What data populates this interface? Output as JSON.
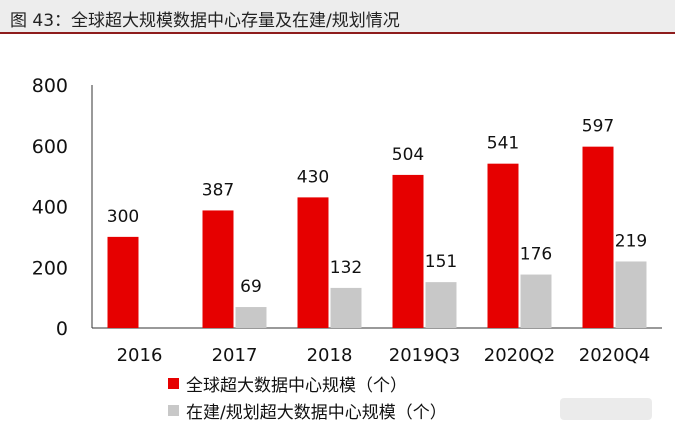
{
  "figure_title": "图 43：全球超大规模数据中心存量及在建/规划情况",
  "chart_data": {
    "type": "bar",
    "categories": [
      "2016",
      "2017",
      "2018",
      "2019Q3",
      "2020Q2",
      "2020Q4"
    ],
    "series": [
      {
        "name": "全球超大数据中心规模（个）",
        "color": "#e60000",
        "values": [
          300,
          387,
          430,
          504,
          541,
          597
        ]
      },
      {
        "name": "在建/规划超大数据中心规模（个）",
        "color": "#c8c8c8",
        "values": [
          null,
          69,
          132,
          151,
          176,
          219
        ]
      }
    ],
    "ylim": [
      0,
      800
    ],
    "yticks": [
      0,
      200,
      400,
      600,
      800
    ],
    "grid": false,
    "legend_position": "bottom"
  }
}
